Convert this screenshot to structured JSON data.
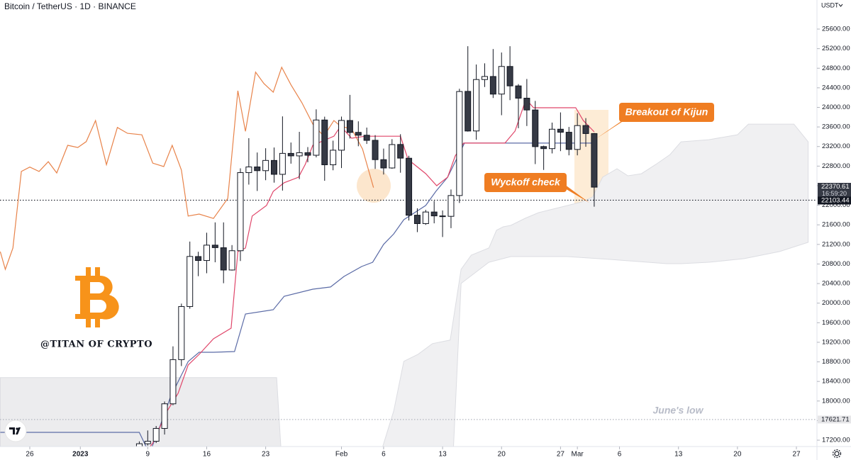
{
  "chart_data": {
    "type": "candlestick",
    "title": "Bitcoin / TetherUS · 1D · BINANCE",
    "currency": "USDT",
    "up_color": "#ffffff",
    "down_color": "#363a45",
    "x": [
      13,
      14,
      15,
      16,
      17,
      18,
      19,
      20,
      21,
      22,
      23,
      24,
      25,
      26,
      27,
      28,
      29,
      30,
      31,
      32,
      33,
      34,
      35,
      36,
      37,
      38,
      39,
      40,
      41,
      42,
      43,
      44,
      45,
      46,
      47,
      48,
      49,
      50,
      51,
      52,
      53,
      54,
      55,
      56,
      57,
      58,
      59,
      60,
      61,
      62,
      63,
      64,
      65,
      66,
      67
    ],
    "open": [
      16946,
      17127,
      17178,
      17440,
      17943,
      18846,
      19930,
      20952,
      20871,
      21185,
      21132,
      20677,
      21071,
      22667,
      22783,
      22707,
      22916,
      22632,
      23060,
      23009,
      23074,
      23022,
      23742,
      22827,
      23125,
      23732,
      23489,
      23431,
      23327,
      22932,
      22762,
      23242,
      22961,
      21797,
      21625,
      21862,
      21782,
      21774,
      22199,
      24327,
      23518,
      24569,
      24631,
      24272,
      24836,
      24439,
      24188,
      23947,
      23199,
      23157,
      23554,
      23492,
      23141,
      23629,
      23465
    ],
    "high": [
      17176,
      17398,
      17490,
      17990,
      19117,
      19990,
      21258,
      21050,
      21439,
      21650,
      21650,
      21186,
      22755,
      23371,
      23078,
      23165,
      23180,
      23816,
      23282,
      23500,
      23189,
      23960,
      23810,
      23320,
      23812,
      24255,
      23715,
      23587,
      23433,
      23158,
      23350,
      23452,
      23011,
      21938,
      21906,
      22090,
      21894,
      22322,
      24380,
      25250,
      24876,
      24900,
      25192,
      25121,
      25250,
      24476,
      24580,
      24132,
      23218,
      23689,
      23897,
      23600,
      23880,
      23780,
      23476
    ],
    "low": [
      16908,
      17090,
      17142,
      17315,
      17914,
      18714,
      19886,
      20551,
      20611,
      20835,
      20407,
      20665,
      20861,
      22422,
      22292,
      22512,
      22462,
      22300,
      22850,
      22534,
      22878,
      22978,
      22500,
      22715,
      22760,
      23364,
      23206,
      23253,
      22743,
      22628,
      22745,
      22665,
      21688,
      21451,
      21599,
      21631,
      21351,
      21532,
      22047,
      23505,
      23339,
      24416,
      24192,
      23840,
      24148,
      23574,
      23619,
      22841,
      22722,
      23059,
      23106,
      23020,
      23020,
      23195,
      21971
    ],
    "close": [
      17127,
      17178,
      17440,
      17943,
      18846,
      19930,
      20954,
      20871,
      21185,
      21134,
      20677,
      21071,
      22667,
      22783,
      22707,
      22916,
      22632,
      23060,
      23009,
      23074,
      23022,
      23742,
      22827,
      23125,
      23733,
      23488,
      23431,
      23326,
      22932,
      22762,
      23240,
      22963,
      21796,
      21625,
      21862,
      21783,
      21773,
      22199,
      24324,
      23517,
      24569,
      24631,
      24271,
      24836,
      24439,
      24188,
      23947,
      23198,
      23157,
      23554,
      23492,
      23141,
      23628,
      23465,
      22370
    ],
    "lines": [
      {
        "color": "#e8834a",
        "x": [
          -3.5,
          -2.9,
          -2,
          -1,
          0,
          1.1,
          2.2,
          3.2,
          4.5,
          5.7,
          6.7,
          7.8,
          9.1,
          10.4,
          11.6,
          13.3,
          14.6,
          15.9,
          16.9,
          18,
          18.8,
          20.1,
          21.8,
          23.5,
          24.7,
          25.6,
          26.8,
          27.8,
          28.9,
          29.9,
          31,
          32.3,
          33.6,
          34.9,
          36.1,
          36.9,
          38.2,
          39.5,
          40.8
        ],
        "values": [
          21053,
          20690,
          21125,
          22690,
          22780,
          22690,
          22890,
          22660,
          23225,
          23180,
          23300,
          23730,
          22830,
          23590,
          23470,
          23440,
          22860,
          22790,
          23225,
          22720,
          21780,
          21820,
          21730,
          22140,
          24340,
          23510,
          24720,
          24485,
          24310,
          24820,
          24460,
          24095,
          23660,
          23410,
          23730,
          23615,
          23560,
          23150,
          22360
        ]
      },
      {
        "color": "#5b6ba6",
        "x": [
          -3.5,
          13,
          14.2,
          15.5,
          16.7,
          18.8,
          20.1,
          21.8,
          24.3,
          25.6,
          28.9,
          30.2,
          33.6,
          35.7,
          37.3,
          39.4,
          40.7,
          42,
          43.2,
          44.4,
          47,
          48.2,
          49.6,
          51.6,
          67
        ],
        "values": [
          17360,
          17360,
          16925,
          17505,
          18083,
          18807,
          18996,
          18996,
          19011,
          19778,
          19865,
          20140,
          20285,
          20330,
          20546,
          20749,
          20835,
          21200,
          21415,
          21705,
          21995,
          22283,
          22573,
          23270,
          23270
        ]
      },
      {
        "color": "#e0466a",
        "x": [
          13.3,
          14.6,
          16.3,
          17.6,
          18.8,
          20.1,
          21.8,
          23.9,
          24.7,
          25.6,
          26.4,
          28.1,
          28.9,
          30.2,
          31.9,
          32.7,
          33.6,
          36.1,
          36.9,
          38.2,
          39.8,
          44,
          44.9,
          47,
          48.3,
          49.6,
          50.5,
          51.5,
          56.4,
          57.6,
          58.9,
          59.8,
          64.8,
          65.7,
          67
        ],
        "values": [
          16853,
          17140,
          17794,
          18156,
          18735,
          18953,
          19272,
          19489,
          21053,
          21125,
          21780,
          21995,
          22283,
          22460,
          22573,
          22834,
          23225,
          23410,
          23615,
          23370,
          23410,
          23410,
          22935,
          22646,
          22400,
          22573,
          23008,
          23270,
          23270,
          23515,
          24166,
          23993,
          23993,
          23730,
          23500
        ]
      }
    ],
    "cloud": [
      {
        "color": "#ececee",
        "upper": {
          "x": [
            -3.5,
            29.3,
            29.8
          ],
          "values": [
            18478,
            18478,
            17070
          ]
        },
        "lower": {
          "x": [
            -3.5,
            29.8
          ],
          "values": [
            17070,
            17070
          ]
        }
      },
      {
        "color": "#f0f0f2",
        "upper": {
          "x": [
            41.9,
            43.2,
            44.4,
            46.1,
            47.8,
            49.9,
            51.2,
            52.4,
            54.5,
            55.4,
            56.2,
            57.1,
            58.8,
            60.4,
            62.1,
            63.8,
            65.5,
            66.8,
            68,
            69.7,
            71,
            72.6,
            74.3,
            76,
            77.3,
            80.6,
            84,
            85.3,
            90.7,
            92.4
          ],
          "values": [
            17070,
            17798,
            18811,
            18956,
            19173,
            19245,
            20692,
            20981,
            21126,
            21488,
            21560,
            21589,
            21734,
            21849,
            21922,
            21994,
            22066,
            22168,
            22573,
            22746,
            22602,
            22645,
            22833,
            23036,
            23296,
            23340,
            23441,
            23658,
            23658,
            23296
          ]
        },
        "lower": {
          "x": [
            41.9,
            50.3,
            51.2,
            54.5,
            57.1,
            63.8,
            68.9,
            75.6,
            77.3,
            80.6,
            84.8,
            89,
            92.4
          ],
          "values": [
            17070,
            17070,
            20402,
            20836,
            20952,
            20952,
            20894,
            20807,
            20807,
            20836,
            20909,
            21054,
            21242
          ]
        }
      }
    ],
    "levels": [
      {
        "value": 22370.61,
        "label": "22370.61",
        "countdown": "16:59:20",
        "color": "#363a45"
      },
      {
        "value": 22103.44,
        "label": "22103.44",
        "color": "#131722"
      },
      {
        "value": 17621.71,
        "label": "17621.71",
        "color": "#e6e6e8"
      }
    ],
    "xlim": [
      -3.535,
      93.44
    ],
    "ylim": [
      17070,
      26194
    ],
    "xticks": [
      {
        "value": 0,
        "label": "26"
      },
      {
        "value": 6,
        "label": "2023"
      },
      {
        "value": 14,
        "label": "9"
      },
      {
        "value": 21,
        "label": "16"
      },
      {
        "value": 28,
        "label": "23"
      },
      {
        "value": 37,
        "label": "Feb"
      },
      {
        "value": 42,
        "label": "6"
      },
      {
        "value": 49,
        "label": "13"
      },
      {
        "value": 56,
        "label": "20"
      },
      {
        "value": 63,
        "label": "27"
      },
      {
        "value": 65,
        "label": "Mar"
      },
      {
        "value": 70,
        "label": "6"
      },
      {
        "value": 77,
        "label": "13"
      },
      {
        "value": 84,
        "label": "20"
      },
      {
        "value": 91,
        "label": "27"
      }
    ],
    "yticks": [
      {
        "value": 17200,
        "label": "17200.00"
      },
      {
        "value": 17600,
        "label": "17600.00"
      },
      {
        "value": 18000,
        "label": "18000.00"
      },
      {
        "value": 18400,
        "label": "18400.00"
      },
      {
        "value": 18800,
        "label": "18800.00"
      },
      {
        "value": 19200,
        "label": "19200.00"
      },
      {
        "value": 19600,
        "label": "19600.00"
      },
      {
        "value": 20000,
        "label": "20000.00"
      },
      {
        "value": 20400,
        "label": "20400.00"
      },
      {
        "value": 20800,
        "label": "20800.00"
      },
      {
        "value": 21200,
        "label": "21200.00"
      },
      {
        "value": 21600,
        "label": "21600.00"
      },
      {
        "value": 22000,
        "label": "22000.00"
      },
      {
        "value": 22400,
        "label": "22400.00"
      },
      {
        "value": 22800,
        "label": "22800.00"
      },
      {
        "value": 23200,
        "label": "23200.00"
      },
      {
        "value": 23600,
        "label": "23600.00"
      },
      {
        "value": 24000,
        "label": "24000.00"
      },
      {
        "value": 24400,
        "label": "24400.00"
      },
      {
        "value": 24800,
        "label": "24800.00"
      },
      {
        "value": 25200,
        "label": "25200.00"
      },
      {
        "value": 25600,
        "label": "25600.00"
      }
    ],
    "annotations": [
      "Breakout of Kijun",
      "Wyckoff check",
      "June's low"
    ],
    "watermark": "@TITAN OF CRYPTO"
  }
}
